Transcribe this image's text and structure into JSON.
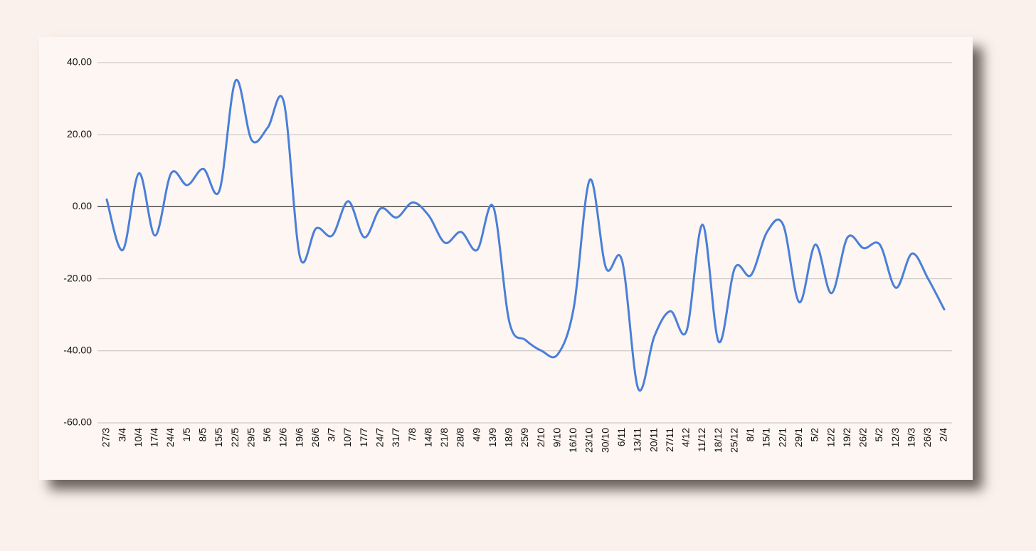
{
  "chart_data": {
    "type": "line",
    "categories": [
      "27/3",
      "3/4",
      "10/4",
      "17/4",
      "24/4",
      "1/5",
      "8/5",
      "15/5",
      "22/5",
      "29/5",
      "5/6",
      "12/6",
      "19/6",
      "26/6",
      "3/7",
      "10/7",
      "17/7",
      "24/7",
      "31/7",
      "7/8",
      "14/8",
      "21/8",
      "28/8",
      "4/9",
      "13/9",
      "18/9",
      "25/9",
      "2/10",
      "9/10",
      "16/10",
      "23/10",
      "30/10",
      "6/11",
      "13/11",
      "20/11",
      "27/11",
      "4/12",
      "11/12",
      "18/12",
      "25/12",
      "8/1",
      "15/1",
      "22/1",
      "29/1",
      "5/2",
      "12/2",
      "19/2",
      "26/2",
      "5/2",
      "12/3",
      "19/3",
      "26/3",
      "2/4"
    ],
    "values": [
      2,
      -12,
      9.3,
      -8,
      9.3,
      6,
      10.5,
      4.5,
      35,
      18.5,
      22,
      29,
      -14,
      -6,
      -8,
      1.5,
      -8.5,
      -0.5,
      -3,
      1.2,
      -2.5,
      -10,
      -7,
      -12,
      0,
      -32,
      -37,
      -40,
      -41,
      -28,
      7.5,
      -17,
      -15,
      -50.5,
      -36,
      -29,
      -34.5,
      -5,
      -37.5,
      -17,
      -19,
      -7,
      -5,
      -26.5,
      -10.5,
      -24,
      -8.5,
      -11.5,
      -10.5,
      -22.5,
      -13,
      -20,
      -28.5
    ],
    "color": "#4a7fd9",
    "ylim": [
      -60,
      40
    ],
    "yticks": [
      {
        "value": -60,
        "label": "-60.00"
      },
      {
        "value": -40,
        "label": "-40.00"
      },
      {
        "value": -20,
        "label": "-20.00"
      },
      {
        "value": 0,
        "label": "0.00"
      },
      {
        "value": 20,
        "label": "20.00"
      },
      {
        "value": 40,
        "label": "40.00"
      }
    ],
    "grid": true
  }
}
